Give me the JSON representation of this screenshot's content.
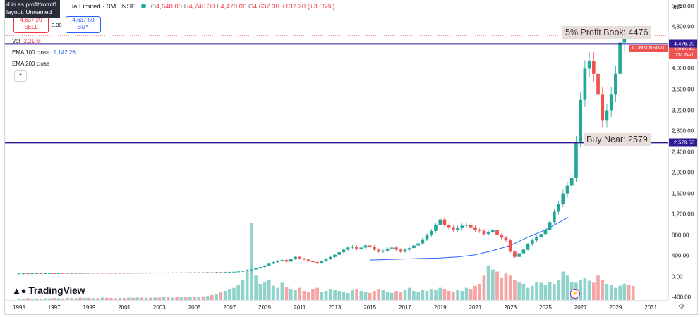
{
  "header": {
    "user_tip_line1": "d in as profitfromit1",
    "user_tip_line2": "layout: Unnamed",
    "symbol": "ia Limited · 3M · NSE",
    "ohlc": {
      "o_label": "O",
      "o": "4,640.00",
      "h_label": "H",
      "h": "4,746.30",
      "l_label": "L",
      "l": "4,470.00",
      "c_label": "C",
      "c": "4,637.30",
      "change": "+137.20 (+3.05%)"
    },
    "sell_price": "4,637.20",
    "sell_label": "SELL",
    "spread": "0.30",
    "buy_price": "4,637.50",
    "buy_label": "BUY",
    "currency": "INR"
  },
  "indicators": {
    "vol_label": "Vol",
    "vol_value": "2.21 M",
    "ema100_label": "EMA 100 close",
    "ema100_value": "1,142.26",
    "ema200_label": "EMA 200 close"
  },
  "annotations": {
    "profit": "5% Profit Book: 4476",
    "buy": "Buy Near: 2579"
  },
  "price_tags": {
    "symbol_tag": "CUMMINSIND",
    "last_price": "4,637.30",
    "countdown": "2M 24d",
    "line1": "4,476.00",
    "line2": "2,579.50"
  },
  "logo": "TradingView",
  "colors": {
    "up": "#26a69a",
    "down": "#ef5350",
    "vol_up": "#8fd3cb",
    "vol_down": "#f5a5a5",
    "ema": "#2962ff",
    "hline": "#311b92",
    "anno_bg": "#e7ddd9"
  },
  "chart_data": {
    "type": "candlestick",
    "period": "3M",
    "y_ticks": [
      5200,
      4800,
      4400,
      4000,
      3600,
      3200,
      2800,
      2400,
      2000,
      1600,
      1200,
      800,
      400,
      0,
      -400
    ],
    "y_tick_labels": [
      "5,200.00",
      "4,800.00",
      "4,400.00",
      "4,000.00",
      "3,600.00",
      "3,200.00",
      "2,800.00",
      "2,400.00",
      "2,000.00",
      "1,600.00",
      "1,200.00",
      "800.00",
      "400.00",
      "0.00",
      "-400.00"
    ],
    "x_ticks": [
      "1995",
      "1997",
      "1999",
      "2001",
      "2003",
      "2005",
      "2007",
      "2009",
      "2011",
      "2013",
      "2015",
      "2017",
      "2019",
      "2021",
      "2023",
      "2025",
      "2027",
      "2029",
      "2031"
    ],
    "ylim": [
      -450,
      5320
    ],
    "xlim": [
      1994.2,
      2032.0
    ],
    "hlines": [
      4476,
      2579.5
    ],
    "start_year": 1995.0,
    "step_years": 0.25,
    "closes": [
      60,
      62,
      61,
      63,
      64,
      62,
      65,
      66,
      64,
      67,
      66,
      68,
      67,
      70,
      69,
      72,
      71,
      73,
      72,
      74,
      73,
      72,
      71,
      73,
      72,
      74,
      73,
      75,
      74,
      76,
      75,
      77,
      76,
      78,
      77,
      79,
      78,
      80,
      79,
      81,
      80,
      82,
      81,
      84,
      83,
      86,
      85,
      88,
      90,
      95,
      100,
      110,
      125,
      140,
      160,
      185,
      215,
      250,
      280,
      300,
      320,
      290,
      340,
      380,
      350,
      330,
      300,
      280,
      260,
      300,
      340,
      380,
      420,
      470,
      520,
      560,
      580,
      530,
      560,
      600,
      580,
      520,
      480,
      500,
      540,
      560,
      520,
      480,
      520,
      550,
      600,
      640,
      720,
      800,
      880,
      1000,
      1100,
      1000,
      950,
      900,
      940,
      980,
      1000,
      950,
      900,
      880,
      820,
      850,
      900,
      800,
      750,
      700,
      480,
      380,
      450,
      520,
      620,
      700,
      760,
      820,
      900,
      1050,
      1250,
      1400,
      1600,
      1750,
      1900,
      2600,
      3400,
      4000,
      4150,
      3900,
      3500,
      3000,
      3200,
      3500,
      3900,
      4500,
      4637
    ],
    "ema": [
      {
        "x": 2015.0,
        "y": 320
      },
      {
        "x": 2016.0,
        "y": 330
      },
      {
        "x": 2017.0,
        "y": 340
      },
      {
        "x": 2018.0,
        "y": 350
      },
      {
        "x": 2019.0,
        "y": 360
      },
      {
        "x": 2020.0,
        "y": 380
      },
      {
        "x": 2021.0,
        "y": 420
      },
      {
        "x": 2022.0,
        "y": 500
      },
      {
        "x": 2023.0,
        "y": 600
      },
      {
        "x": 2024.0,
        "y": 760
      },
      {
        "x": 2025.0,
        "y": 900
      },
      {
        "x": 2026.3,
        "y": 1142
      }
    ],
    "volume": [
      8,
      7,
      9,
      6,
      8,
      7,
      9,
      8,
      10,
      9,
      8,
      11,
      10,
      9,
      12,
      10,
      11,
      9,
      10,
      12,
      11,
      10,
      9,
      11,
      10,
      12,
      11,
      13,
      12,
      11,
      12,
      13,
      12,
      14,
      13,
      12,
      14,
      13,
      15,
      14,
      16,
      15,
      18,
      20,
      25,
      30,
      40,
      45,
      55,
      60,
      75,
      100,
      150,
      380,
      120,
      80,
      90,
      100,
      70,
      60,
      85,
      65,
      55,
      50,
      60,
      45,
      40,
      55,
      60,
      40,
      45,
      55,
      50,
      45,
      40,
      35,
      50,
      55,
      45,
      40,
      35,
      45,
      55,
      50,
      40,
      35,
      45,
      40,
      50,
      60,
      45,
      40,
      50,
      45,
      55,
      50,
      60,
      55,
      45,
      40,
      50,
      45,
      60,
      55,
      70,
      80,
      120,
      170,
      150,
      140,
      110,
      130,
      120,
      100,
      90,
      80,
      60,
      70,
      90,
      85,
      75,
      90,
      80,
      100,
      140,
      120,
      90,
      85,
      100,
      110,
      95,
      85,
      120,
      100,
      80,
      75,
      60,
      70,
      80,
      75,
      70
    ]
  }
}
